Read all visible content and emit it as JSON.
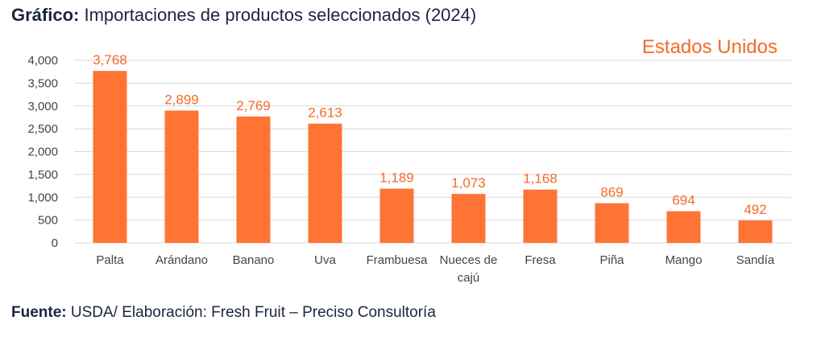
{
  "title_prefix": "Gráfico:",
  "title_text": "Importaciones de productos seleccionados (2024)",
  "source_prefix": "Fuente:",
  "source_text": "USDA/ Elaboración: Fresh Fruit – Preciso Consultoría",
  "colors": {
    "bar": "#ff7435",
    "label": "#f26b2a",
    "grid": "#d9d9d9"
  },
  "chart_data": {
    "type": "bar",
    "annotation": "Estados Unidos",
    "categories": [
      "Palta",
      "Arándano",
      "Banano",
      "Uva",
      "Frambuesa",
      "Nueces de cajú",
      "Fresa",
      "Piña",
      "Mango",
      "Sandía"
    ],
    "category_lines": [
      [
        "Palta"
      ],
      [
        "Arándano"
      ],
      [
        "Banano"
      ],
      [
        "Uva"
      ],
      [
        "Frambuesa"
      ],
      [
        "Nueces de",
        "cajú"
      ],
      [
        "Fresa"
      ],
      [
        "Piña"
      ],
      [
        "Mango"
      ],
      [
        "Sandía"
      ]
    ],
    "values": [
      3768,
      2899,
      2769,
      2613,
      1189,
      1073,
      1168,
      869,
      694,
      492
    ],
    "value_labels": [
      "3,768",
      "2,899",
      "2,769",
      "2,613",
      "1,189",
      "1,073",
      "1,168",
      "869",
      "694",
      "492"
    ],
    "yticks": [
      "0",
      "500",
      "1,000",
      "1,500",
      "2,000",
      "2,500",
      "3,000",
      "3,500",
      "4,000"
    ],
    "ylim": [
      0,
      4000
    ],
    "grid": true
  }
}
